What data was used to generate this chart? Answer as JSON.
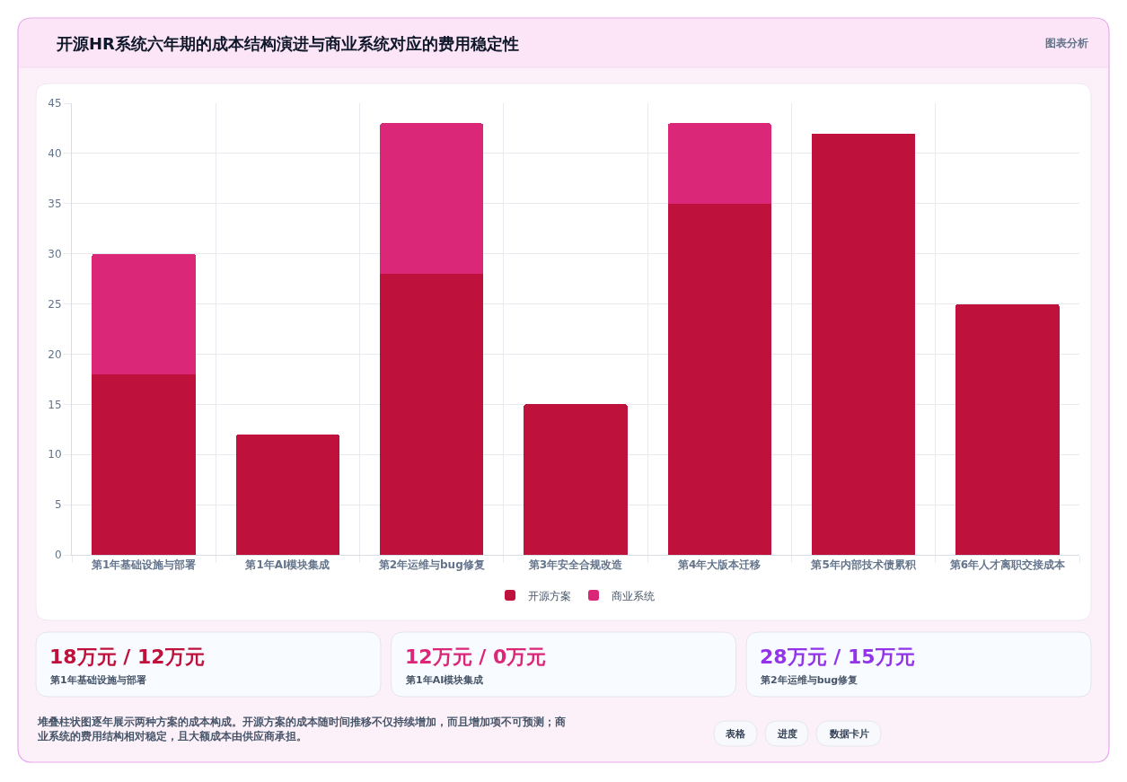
{
  "chart_data": [
    {
      "type": "bar",
      "title": "开源HR系统六年期的成本结构演进与商业系统对应的费用稳定性",
      "categories": [
        "第1年基础设施与部署",
        "第1年AI模块集成",
        "第2年运维与bug修复",
        "第3年安全合规改造",
        "第4年大版本迁移",
        "第5年内部技术债累积",
        "第6年人才离职交接成本"
      ],
      "series": [
        {
          "name": "开源方案",
          "color": "#be123c",
          "values": [
            18,
            12,
            28,
            15,
            35,
            42,
            25
          ]
        },
        {
          "name": "商业系统",
          "color": "#db2777",
          "values": [
            12,
            0,
            15,
            0,
            8,
            0,
            0
          ]
        }
      ],
      "stacked": true,
      "ylim": [
        0,
        45
      ],
      "yticks": [
        0,
        5,
        10,
        15,
        20,
        25,
        30,
        35,
        40,
        45
      ],
      "grid": true,
      "legend": "bottom",
      "annotations": [
        "图表分析",
        "堆叠柱状图逐年展示两种方案的成本构成。开源方案的成本随时间推移不仅持续增加，而且增加项不可预测；商业系统的费用结构相对稳定，且大额成本由供应商承担。",
        "表格",
        "进度",
        "数据卡片"
      ]
    },
    {
      "type": "other",
      "title": "18万元 / 12万元",
      "subtitle": "第1年基础设施与部署",
      "color": "#be123c"
    },
    {
      "type": "other",
      "title": "12万元 / 0万元",
      "subtitle": "第1年AI模块集成",
      "color": "#db2777"
    },
    {
      "type": "other",
      "title": "28万元 / 15万元",
      "subtitle": "第2年运维与bug修复",
      "color": "#9333ea"
    }
  ]
}
